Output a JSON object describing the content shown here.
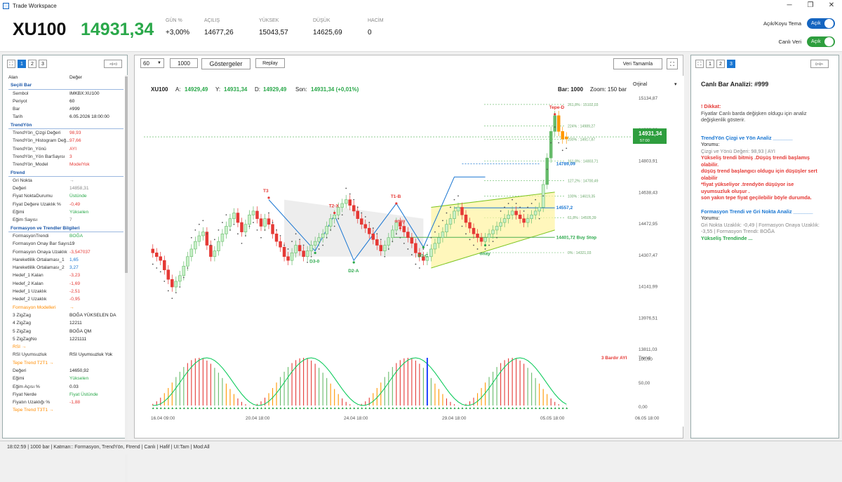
{
  "window": {
    "title": "Trade Workspace"
  },
  "header": {
    "symbol": "XU100",
    "price": "14931,34",
    "stats": [
      {
        "label": "GÜN %",
        "value": "+3,00%"
      },
      {
        "label": "AÇILIŞ",
        "value": "14677,26"
      },
      {
        "label": "YÜKSEK",
        "value": "15043,57"
      },
      {
        "label": "DÜŞÜK",
        "value": "14625,69"
      },
      {
        "label": "HACİM",
        "value": "0"
      }
    ],
    "theme_label": "Açık/Koyu Tema",
    "theme_toggle": "Açık",
    "live_label": "Canlı Veri",
    "live_toggle": "Açık"
  },
  "left_panel": {
    "tabs": [
      "1",
      "2",
      "3"
    ],
    "collapse_btn": "◅◅",
    "col_field": "Alan",
    "col_value": "Değer",
    "rows": [
      {
        "t": "sec",
        "k": "Seçili Bar"
      },
      {
        "k": "Sembol",
        "v": "IMKBX:XU100"
      },
      {
        "k": "Periyot",
        "v": "60"
      },
      {
        "k": "Bar",
        "v": "#999"
      },
      {
        "k": "Tarih",
        "v": "6.05.2026 18:00:00"
      },
      {
        "t": "sec",
        "k": "TrendYön"
      },
      {
        "k": "TrendYön_Çizgi Değeri",
        "v": "98,93",
        "c": "red"
      },
      {
        "k": "TrendYön_Histogram Değ...",
        "v": "97,66",
        "c": "red"
      },
      {
        "k": "TrendYön_Yönü",
        "v": "AYI",
        "c": "red"
      },
      {
        "k": "TrendYön_Yön BarSayısı",
        "v": "3",
        "c": "red"
      },
      {
        "k": "TrendYön_Model",
        "v": "ModelYok",
        "c": "red"
      },
      {
        "t": "sec",
        "k": "Ftrend"
      },
      {
        "k": "Gri Nokta",
        "v": "→",
        "c": "grey"
      },
      {
        "k": "Değeri",
        "v": "14858,31",
        "c": "grey"
      },
      {
        "k": "Fiyat NoktaDurumu",
        "v": "Üstünde",
        "c": "green"
      },
      {
        "k": "Fiyat Değere Uzaklık %",
        "v": "-0,49",
        "c": "red"
      },
      {
        "k": "Eğimi",
        "v": "Yükselen",
        "c": "green"
      },
      {
        "k": "Eğim Sayısı",
        "v": "7",
        "c": "grey"
      },
      {
        "t": "sec",
        "k": "Formasyon ve Trendler Bilgileri"
      },
      {
        "k": "FormasyonTrendi",
        "v": "BOĞA",
        "c": "green"
      },
      {
        "k": "Formasyon Onay Bar Sayısı",
        "v": "19"
      },
      {
        "k": "Formasyon Onaya Uzaklık",
        "v": "-3,547037",
        "c": "red"
      },
      {
        "k": "Hareketlilik Ortalaması_1",
        "v": "1,65",
        "c": "blue"
      },
      {
        "k": "Hareketlilik Ortalaması_2",
        "v": "3,27",
        "c": "blue"
      },
      {
        "k": "Hedef_1 Kalan",
        "v": "-3,23",
        "c": "red"
      },
      {
        "k": "Hedef_2 Kalan",
        "v": "-1,69",
        "c": "red"
      },
      {
        "k": "Hedef_1 Uzaklık",
        "v": "-2,51",
        "c": "red"
      },
      {
        "k": "Hedef_2 Uzaklık",
        "v": "-0,95",
        "c": "red"
      },
      {
        "t": "sub",
        "k": "Formasyon Modelleri",
        "v": "→",
        "c": "orange"
      },
      {
        "k": "3 ZigZag",
        "v": "BOĞA YÜKSELEN DA"
      },
      {
        "k": "4 ZigZag",
        "v": "12211"
      },
      {
        "k": "5 ZigZag",
        "v": "BOĞA QM"
      },
      {
        "k": "5 ZigZagNo",
        "v": "1221111"
      },
      {
        "t": "sub",
        "k": "RSI →"
      },
      {
        "k": "RSI Uyumsuzluk",
        "v": "RSI Uyumsuzluk Yok"
      },
      {
        "t": "sub",
        "k": "Tepe Trend T2T1 →"
      },
      {
        "k": "Değeri",
        "v": "14650,92"
      },
      {
        "k": "Eğimi",
        "v": "Yükselen",
        "c": "green"
      },
      {
        "k": "Eğim Açısı %",
        "v": "0.03"
      },
      {
        "k": "Fiyat Nerde",
        "v": "Fiyat Üstünde",
        "c": "green"
      },
      {
        "k": "Fiyatın Uzaklığı %",
        "v": "-1,88",
        "c": "red"
      },
      {
        "t": "sub",
        "k": "Tepe Trend T3T1 →"
      }
    ]
  },
  "toolbar": {
    "period": "60",
    "bars": "1000",
    "indicators_btn": "Göstergeler",
    "replay_btn": "Replay",
    "complete_btn": "Veri Tamamla"
  },
  "chart_data": {
    "type": "candlestick",
    "symbol": "XU100",
    "ohlc_labels": {
      "a": "A:",
      "a_v": "14929,49",
      "y": "Y:",
      "y_v": "14931,34",
      "d": "D:",
      "d_v": "14929,49",
      "son": "Son:",
      "son_v": "14931,34 (+0,01%)"
    },
    "bar_label": "Bar: 1000",
    "zoom_label": "Zoom: 150 bar",
    "scale_label": "Orjinal",
    "price_ticks": [
      15134.87,
      14969.39,
      14803.91,
      14638.43,
      14472.95,
      14307.47,
      14141.99,
      13976.51,
      13811.03
    ],
    "price_tick_labels": [
      "15134,87",
      "14969,39",
      "14803,91",
      "14638,43",
      "14472,95",
      "14307,47",
      "14141,99",
      "13976,51",
      "13811,03"
    ],
    "osc_ticks": [
      "100,00",
      "50,00",
      "0,00"
    ],
    "time_labels": [
      "16.04 09:00",
      "20.04 18:00",
      "24.04 18:00",
      "29.04 18:00",
      "05.05 18:00",
      "06.05 18:00"
    ],
    "last_price": "14931,34",
    "last_price_sub": "57:00",
    "fib_levels": [
      {
        "label": "261,8% : 15102,03",
        "price": 15102.03
      },
      {
        "label": "224% : 14989,27",
        "price": 14989.27
      },
      {
        "label": "200% : 14917,87",
        "price": 14917.87
      },
      {
        "label": "161,8% : 14803,71",
        "price": 14803.71
      },
      {
        "label": "127,2% : 14700,49",
        "price": 14700.49
      },
      {
        "label": "100% : 14619,35",
        "price": 14619.35
      },
      {
        "label": "61,8% : 14505,39",
        "price": 14505.39
      },
      {
        "label": "0% : 14321,03",
        "price": 14321.03
      }
    ],
    "level_labels": [
      {
        "text": "14789,09",
        "price": 14789.09
      },
      {
        "text": "14557,2",
        "price": 14557.2
      },
      {
        "text": "14401,72 Buy Stop",
        "price": 14401.72
      }
    ],
    "pivot_labels": [
      "Tepe-D",
      "T3",
      "T2-X",
      "T1-B",
      "D3-0",
      "D2-A",
      "D1-C",
      "onay",
      "onay"
    ],
    "osc_label": "3 Bardır AYI",
    "trend_label": "Trend",
    "closes": [
      14320,
      14300,
      14280,
      14230,
      14180,
      14140,
      14170,
      14200,
      14250,
      14300,
      14340,
      14380,
      14410,
      14430,
      14360,
      14300,
      14330,
      14380,
      14420,
      14460,
      14500,
      14530,
      14480,
      14430,
      14470,
      14520,
      14540,
      14500,
      14460,
      14500,
      14470,
      14420,
      14380,
      14350,
      14300,
      14280,
      14320,
      14360,
      14330,
      14300,
      14330,
      14360,
      14380,
      14400,
      14420,
      14460,
      14500,
      14520,
      14560,
      14580,
      14600,
      14570,
      14540,
      14500,
      14470,
      14450,
      14420,
      14390,
      14360,
      14330,
      14360,
      14400,
      14440,
      14480,
      14460,
      14430,
      14400,
      14370,
      14320,
      14300,
      14280,
      14300,
      14340,
      14370,
      14400,
      14430,
      14470,
      14500,
      14540,
      14560,
      14520,
      14480,
      14450,
      14420,
      14400,
      14380,
      14400,
      14420,
      14440,
      14460,
      14480,
      14500,
      14520,
      14540,
      14520,
      14500,
      14480,
      14500,
      14520,
      14540,
      14560,
      14680,
      14820,
      14960,
      15043,
      14960,
      14920,
      14931
    ]
  },
  "right_panel": {
    "tabs": [
      "1",
      "2",
      "3"
    ],
    "expand_btn": "▻▻",
    "title": "Canlı Bar Analizi: #999",
    "warn_title": "! Dikkat:",
    "warn_text": "Fiyatlar Canlı barda değişken oldugu için analiz değişkenlik gösterir.",
    "sec1_title": "TrendYön Çizgi ve Yön Analiz _______",
    "sec1_comment": "Yorumu:",
    "sec1_detail": "Çizgi ve Yönü Değeri: 98,93 | AYI",
    "sec1_red1": "Yükseliş trendi bitmiş .Düşüş trendi başlamış olabilir.",
    "sec1_red2": "düşüş trend başlangıcı oldugu için düşüşler sert olabilir",
    "sec1_red3": "*fiyat yükseliyor .trendyön düşüyor ise uyumsuzluk oluşur .",
    "sec1_red4": "son yakın tepe fiyat geçilebilir böyle durumda.",
    "sec2_title": "Formasyon Trendi ve Gri Nokta Analiz _______",
    "sec2_comment": "Yorumu:",
    "sec2_detail": "Gri Nokta Uzaklık: -0,49 | Formasyon Onaya Uzaklık: -3,55 | Formasyon Trendi: BOĞA",
    "sec2_green": "Yükseliş Trendinde ..."
  },
  "footer": {
    "status": "18:02:59 | 1000 bar | Katman:: Formasyon, TrendYön, Ftrend | Canlı | Hafif | UI:Tam | Mod:All"
  }
}
